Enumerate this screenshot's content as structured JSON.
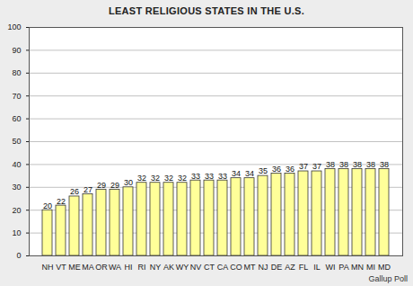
{
  "chart_data": {
    "type": "bar",
    "title": "LEAST RELIGIOUS STATES IN THE U.S.",
    "annotation": "Gallup Poll",
    "categories": [
      "NH",
      "VT",
      "ME",
      "MA",
      "OR",
      "WA",
      "HI",
      "RI",
      "NY",
      "AK",
      "WY",
      "NV",
      "CT",
      "CA",
      "CO",
      "MT",
      "NJ",
      "DE",
      "AZ",
      "FL",
      "IL",
      "WI",
      "PA",
      "MN",
      "MI",
      "MD"
    ],
    "values": [
      20,
      22,
      26,
      27,
      29,
      29,
      30,
      32,
      32,
      32,
      32,
      33,
      33,
      33,
      34,
      34,
      35,
      36,
      36,
      37,
      37,
      38,
      38,
      38,
      38,
      38
    ],
    "color": "#ffff99",
    "ylim": [
      0,
      100
    ],
    "yticks": [
      0,
      10,
      20,
      30,
      40,
      50,
      60,
      70,
      80,
      90,
      100
    ],
    "grid": true,
    "data_labels": true
  }
}
